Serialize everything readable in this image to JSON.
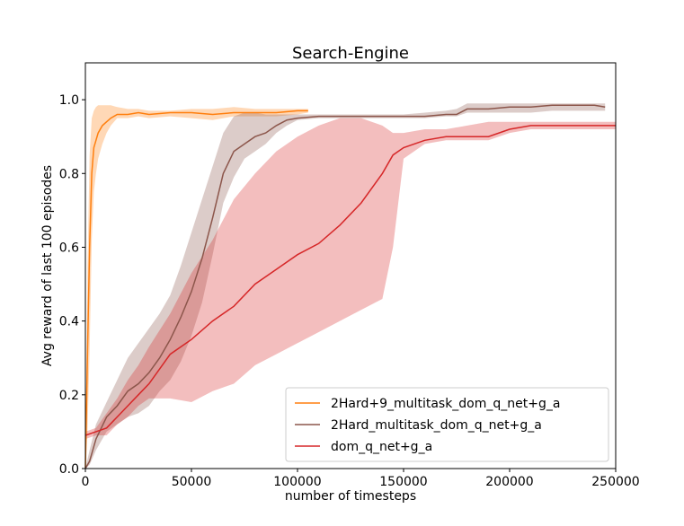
{
  "chart_data": {
    "type": "line",
    "title": "Search-Engine",
    "xlabel": "number of timesteps",
    "ylabel": "Avg reward of last 100 episodes",
    "xlim": [
      0,
      250000
    ],
    "ylim": [
      0,
      1.1
    ],
    "xticks": [
      0,
      50000,
      100000,
      150000,
      200000,
      250000
    ],
    "xtick_labels": [
      "0",
      "50000",
      "100000",
      "150000",
      "200000",
      "250000"
    ],
    "yticks": [
      0.0,
      0.2,
      0.4,
      0.6,
      0.8,
      1.0
    ],
    "ytick_labels": [
      "0.0",
      "0.2",
      "0.4",
      "0.6",
      "0.8",
      "1.0"
    ],
    "grid": false,
    "legend_position": "lower-right",
    "series": [
      {
        "name": "2Hard+9_multitask_dom_q_net+g_a",
        "color": "#ff7f0e",
        "x": [
          0,
          1000,
          2000,
          3000,
          4000,
          5000,
          6000,
          8000,
          10000,
          12000,
          15000,
          20000,
          25000,
          30000,
          40000,
          50000,
          60000,
          70000,
          80000,
          90000,
          100000,
          105000
        ],
        "y": [
          0.0,
          0.32,
          0.6,
          0.8,
          0.87,
          0.89,
          0.91,
          0.93,
          0.94,
          0.95,
          0.96,
          0.96,
          0.965,
          0.96,
          0.965,
          0.965,
          0.96,
          0.965,
          0.965,
          0.965,
          0.97,
          0.97
        ],
        "lower": [
          0.0,
          0.1,
          0.32,
          0.62,
          0.75,
          0.8,
          0.84,
          0.88,
          0.91,
          0.93,
          0.95,
          0.95,
          0.955,
          0.95,
          0.955,
          0.95,
          0.945,
          0.955,
          0.955,
          0.955,
          0.96,
          0.965
        ],
        "upper": [
          0.0,
          0.55,
          0.85,
          0.95,
          0.97,
          0.98,
          0.985,
          0.985,
          0.985,
          0.985,
          0.98,
          0.975,
          0.975,
          0.97,
          0.97,
          0.975,
          0.975,
          0.98,
          0.975,
          0.975,
          0.975,
          0.975
        ]
      },
      {
        "name": "2Hard_multitask_dom_q_net+g_a",
        "color": "#8c564b",
        "x": [
          0,
          2000,
          5000,
          10000,
          15000,
          20000,
          25000,
          30000,
          35000,
          40000,
          45000,
          50000,
          55000,
          60000,
          65000,
          70000,
          75000,
          80000,
          85000,
          90000,
          95000,
          100000,
          110000,
          120000,
          130000,
          140000,
          150000,
          160000,
          170000,
          175000,
          180000,
          190000,
          200000,
          210000,
          220000,
          230000,
          240000,
          245000
        ],
        "y": [
          0.0,
          0.02,
          0.08,
          0.14,
          0.17,
          0.21,
          0.23,
          0.26,
          0.3,
          0.35,
          0.41,
          0.48,
          0.57,
          0.68,
          0.8,
          0.86,
          0.88,
          0.9,
          0.91,
          0.93,
          0.945,
          0.95,
          0.955,
          0.955,
          0.955,
          0.955,
          0.955,
          0.955,
          0.96,
          0.96,
          0.975,
          0.975,
          0.98,
          0.98,
          0.985,
          0.985,
          0.985,
          0.98
        ],
        "lower": [
          0.0,
          0.01,
          0.05,
          0.1,
          0.12,
          0.14,
          0.15,
          0.17,
          0.21,
          0.24,
          0.29,
          0.36,
          0.45,
          0.58,
          0.72,
          0.79,
          0.84,
          0.86,
          0.88,
          0.91,
          0.93,
          0.945,
          0.95,
          0.95,
          0.95,
          0.95,
          0.95,
          0.95,
          0.955,
          0.955,
          0.965,
          0.965,
          0.965,
          0.965,
          0.97,
          0.97,
          0.97,
          0.97
        ],
        "upper": [
          0.0,
          0.05,
          0.12,
          0.18,
          0.24,
          0.3,
          0.34,
          0.38,
          0.42,
          0.47,
          0.55,
          0.64,
          0.73,
          0.82,
          0.91,
          0.955,
          0.965,
          0.965,
          0.96,
          0.96,
          0.96,
          0.96,
          0.96,
          0.96,
          0.96,
          0.96,
          0.96,
          0.965,
          0.97,
          0.975,
          0.99,
          0.99,
          0.99,
          0.99,
          0.99,
          0.99,
          0.99,
          0.99
        ]
      },
      {
        "name": "dom_q_net+g_a",
        "color": "#d62728",
        "x": [
          0,
          5000,
          10000,
          15000,
          20000,
          25000,
          30000,
          40000,
          50000,
          60000,
          70000,
          80000,
          90000,
          100000,
          110000,
          120000,
          130000,
          140000,
          145000,
          150000,
          160000,
          170000,
          180000,
          190000,
          200000,
          210000,
          220000,
          230000,
          240000,
          250000
        ],
        "y": [
          0.09,
          0.1,
          0.11,
          0.14,
          0.17,
          0.2,
          0.23,
          0.31,
          0.35,
          0.4,
          0.44,
          0.5,
          0.54,
          0.58,
          0.61,
          0.66,
          0.72,
          0.8,
          0.85,
          0.87,
          0.89,
          0.9,
          0.9,
          0.9,
          0.92,
          0.93,
          0.93,
          0.93,
          0.93,
          0.93
        ],
        "lower": [
          0.08,
          0.09,
          0.09,
          0.12,
          0.14,
          0.17,
          0.19,
          0.19,
          0.18,
          0.21,
          0.23,
          0.28,
          0.31,
          0.34,
          0.37,
          0.4,
          0.43,
          0.46,
          0.6,
          0.84,
          0.88,
          0.89,
          0.89,
          0.89,
          0.91,
          0.92,
          0.92,
          0.92,
          0.92,
          0.92
        ],
        "upper": [
          0.1,
          0.11,
          0.15,
          0.19,
          0.24,
          0.28,
          0.33,
          0.42,
          0.53,
          0.62,
          0.73,
          0.8,
          0.86,
          0.9,
          0.93,
          0.95,
          0.95,
          0.93,
          0.91,
          0.91,
          0.92,
          0.92,
          0.93,
          0.94,
          0.94,
          0.94,
          0.94,
          0.94,
          0.94,
          0.94
        ]
      }
    ]
  }
}
